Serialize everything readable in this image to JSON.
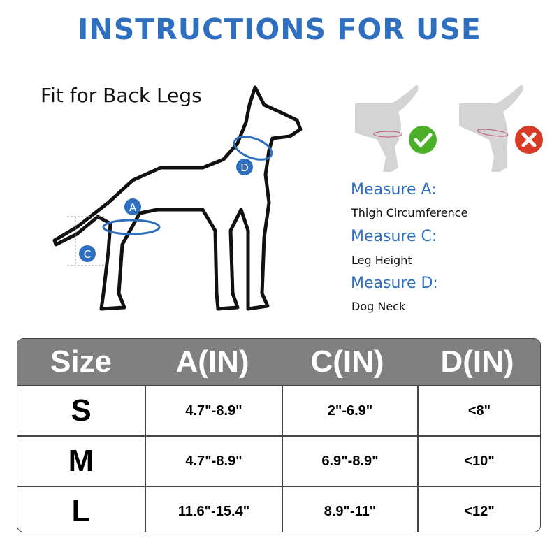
{
  "title": "INSTRUCTIONS FOR USE",
  "diagram": {
    "caption": "Fit for Back Legs",
    "markers": [
      "A",
      "C",
      "D"
    ]
  },
  "fit_examples": [
    {
      "status": "correct",
      "icon": "check-icon",
      "color": "#4caf2a"
    },
    {
      "status": "incorrect",
      "icon": "x-icon",
      "color": "#d93a26"
    }
  ],
  "measures": [
    {
      "label": "Measure A:",
      "description": "Thigh Circumference"
    },
    {
      "label": "Measure C:",
      "description": "Leg Height"
    },
    {
      "label": "Measure D:",
      "description": "Dog Neck"
    }
  ],
  "size_table": {
    "headers": [
      "Size",
      "A(IN)",
      "C(IN)",
      "D(IN)"
    ],
    "rows": [
      [
        "S",
        "4.7\"-8.9\"",
        "2\"-6.9\"",
        "<8\""
      ],
      [
        "M",
        "4.7\"-8.9\"",
        "6.9\"-8.9\"",
        "<10\""
      ],
      [
        "L",
        "11.6\"-15.4\"",
        "8.9\"-11\"",
        "<12\""
      ]
    ]
  },
  "colors": {
    "accent": "#2e6fc0",
    "header_bg": "#808080"
  }
}
